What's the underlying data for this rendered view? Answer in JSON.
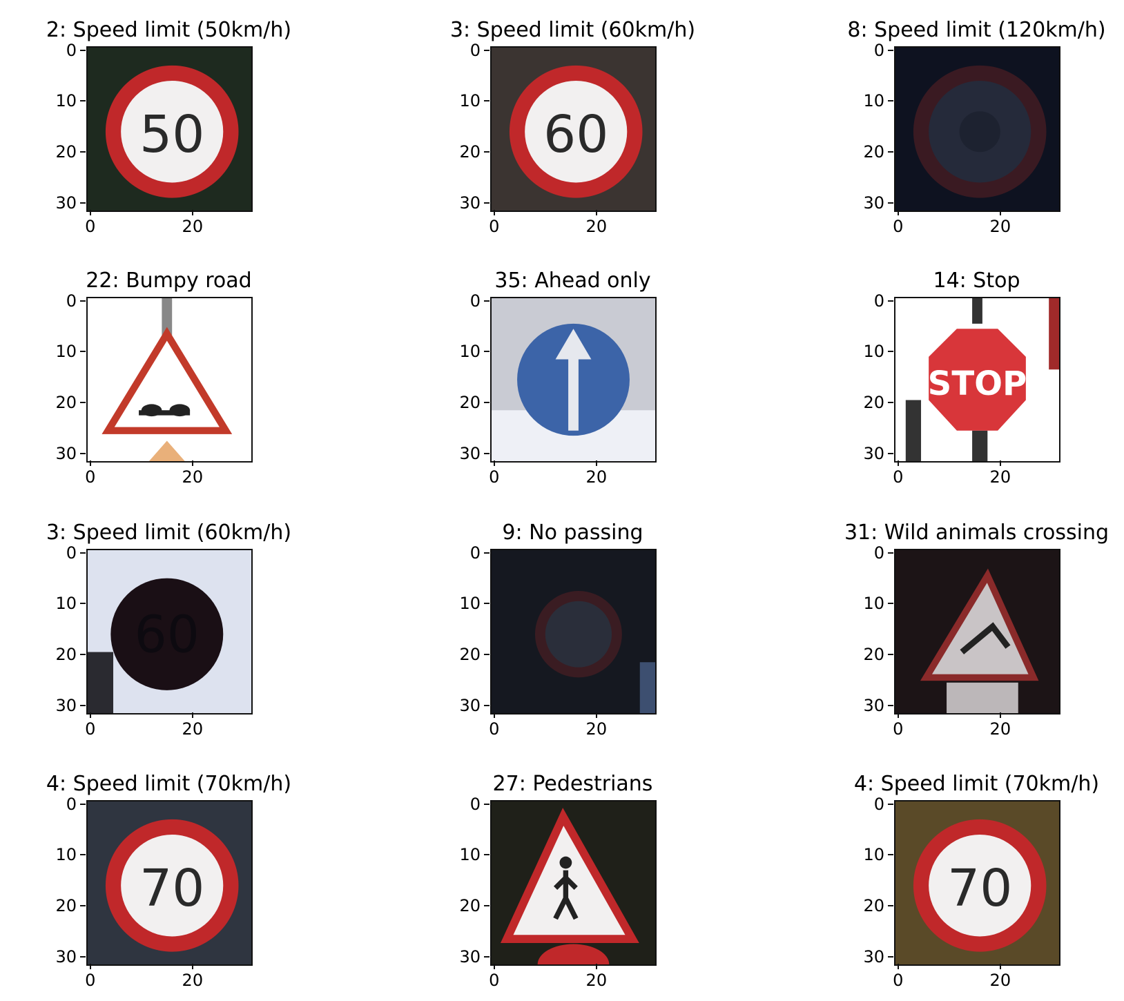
{
  "axis": {
    "yticks": [
      "0",
      "10",
      "20",
      "30"
    ],
    "xticks": [
      "0",
      "20"
    ]
  },
  "panels": [
    {
      "title": "2: Speed limit (50km/h)",
      "sign": "speed",
      "sign_text": "50",
      "bg": "#1e2a1f",
      "tone": "normal"
    },
    {
      "title": "3: Speed limit (60km/h)",
      "sign": "speed",
      "sign_text": "60",
      "bg": "#3b3431",
      "tone": "normal"
    },
    {
      "title": "8: Speed limit (120km/h)",
      "sign": "speed",
      "sign_text": "",
      "bg": "#0e1220",
      "tone": "very-dark"
    },
    {
      "title": "22: Bumpy road",
      "sign": "warning-bumps",
      "sign_text": "",
      "bg": "#ffffff",
      "tone": "bright"
    },
    {
      "title": "35: Ahead only",
      "sign": "ahead-only",
      "sign_text": "",
      "bg": "#c9cbd3",
      "tone": "normal"
    },
    {
      "title": "14: Stop",
      "sign": "stop",
      "sign_text": "STOP",
      "bg": "#ffffff",
      "tone": "bright"
    },
    {
      "title": "3: Speed limit (60km/h)",
      "sign": "speed",
      "sign_text": "60",
      "bg": "#dde2ef",
      "tone": "dark-sign"
    },
    {
      "title": "9: No passing",
      "sign": "no-passing",
      "sign_text": "",
      "bg": "#151820",
      "tone": "very-dark"
    },
    {
      "title": "31: Wild animals crossing",
      "sign": "warning-animal",
      "sign_text": "",
      "bg": "#1c1416",
      "tone": "dim"
    },
    {
      "title": "4: Speed limit (70km/h)",
      "sign": "speed",
      "sign_text": "70",
      "bg": "#2f3540",
      "tone": "normal"
    },
    {
      "title": "27: Pedestrians",
      "sign": "warning-pedestrian",
      "sign_text": "",
      "bg": "#1f2019",
      "tone": "normal"
    },
    {
      "title": "4: Speed limit (70km/h)",
      "sign": "speed",
      "sign_text": "70",
      "bg": "#5a4a28",
      "tone": "normal"
    }
  ]
}
